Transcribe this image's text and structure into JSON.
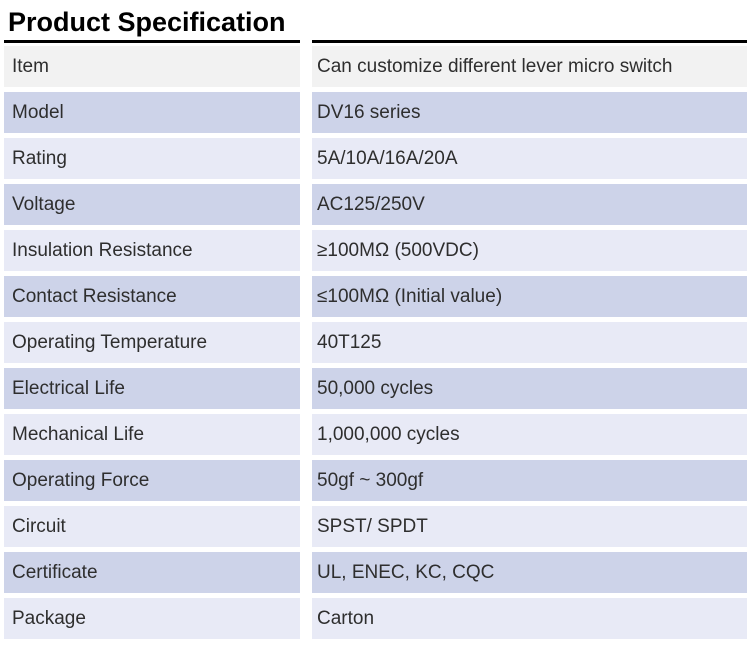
{
  "page": {
    "title": "Product Specification"
  },
  "table": {
    "colors": {
      "row_first": "#f2f2f2",
      "row_dark": "#cdd3e9",
      "row_light": "#e8eaf6",
      "top_border": "#000000",
      "text": "#2e2e2e"
    },
    "rows": [
      {
        "label": "Item",
        "value": "Can customize different lever micro switch"
      },
      {
        "label": "Model",
        "value": "DV16 series"
      },
      {
        "label": "Rating",
        "value": "5A/10A/16A/20A"
      },
      {
        "label": "Voltage",
        "value": "AC125/250V"
      },
      {
        "label": "Insulation Resistance",
        "value": "≥100MΩ (500VDC)"
      },
      {
        "label": "Contact Resistance",
        "value": "≤100MΩ (Initial value)"
      },
      {
        "label": "Operating Temperature",
        "value": "40T125"
      },
      {
        "label": "Electrical Life",
        "value": "50,000 cycles"
      },
      {
        "label": "Mechanical Life",
        "value": "1,000,000 cycles"
      },
      {
        "label": "Operating Force",
        "value": "50gf ~  300gf"
      },
      {
        "label": "Circuit",
        "value": "SPST/ SPDT"
      },
      {
        "label": "Certificate",
        "value": "UL, ENEC, KC, CQC"
      },
      {
        "label": "Package",
        "value": "Carton"
      }
    ]
  }
}
